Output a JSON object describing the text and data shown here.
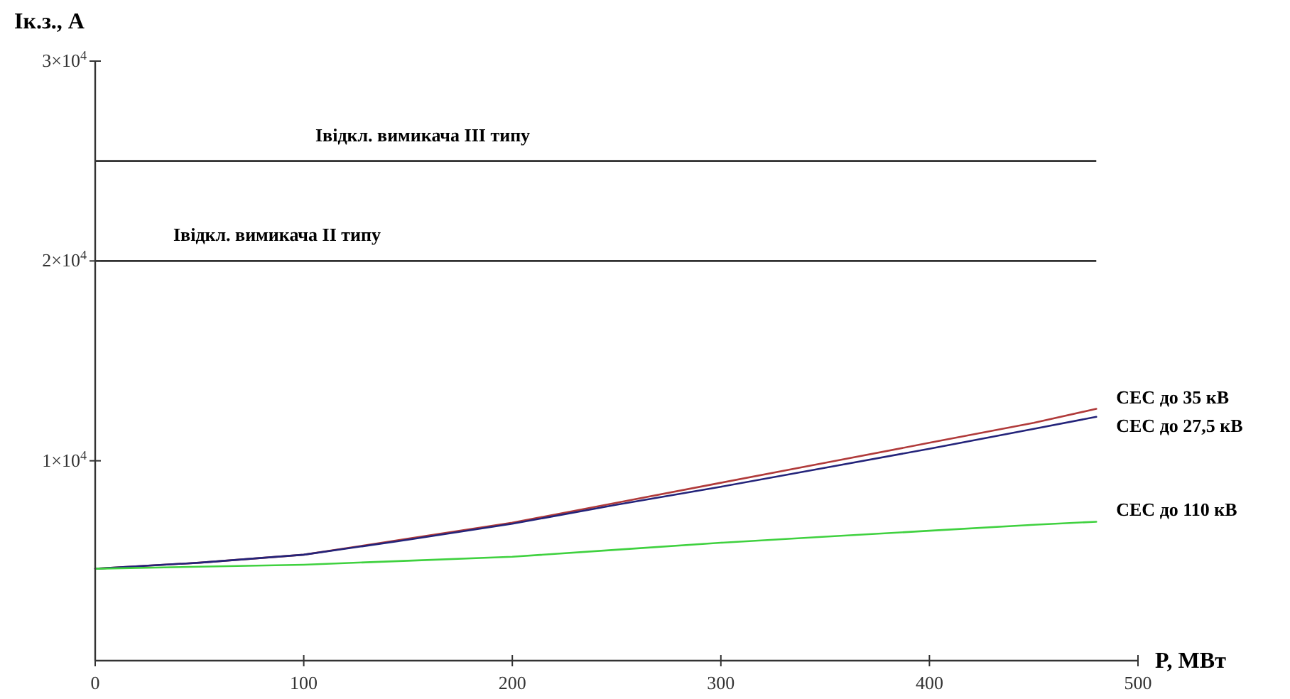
{
  "chart_data": {
    "type": "line",
    "xlabel": "P, МВт",
    "ylabel": "Iк.з., A",
    "xlim": [
      0,
      500
    ],
    "xticks": [
      0,
      100,
      200,
      300,
      400,
      500
    ],
    "ylim": [
      0,
      30000
    ],
    "yticks": [
      {
        "value": 10000,
        "label": "1×10$^{4}$"
      },
      {
        "value": 20000,
        "label": "2×10$^{4}$"
      },
      {
        "value": 30000,
        "label": "3×10$^{4}$"
      }
    ],
    "x": [
      0,
      50,
      100,
      150,
      200,
      250,
      300,
      350,
      400,
      450,
      480
    ],
    "series": [
      {
        "name": "СЕС до 35 кВ",
        "color": "#b03a3a",
        "values": [
          4600,
          4900,
          5300,
          6100,
          6900,
          7900,
          8900,
          9900,
          10900,
          11900,
          12600
        ]
      },
      {
        "name": "СЕС до 27,5 кВ",
        "color": "#23237a",
        "values": [
          4600,
          4900,
          5300,
          6050,
          6850,
          7800,
          8700,
          9650,
          10600,
          11600,
          12200
        ]
      },
      {
        "name": "СЕС до 110 кВ",
        "color": "#3fd13f",
        "values": [
          4600,
          4700,
          4800,
          5000,
          5200,
          5550,
          5900,
          6200,
          6500,
          6800,
          6950
        ]
      }
    ],
    "ref_lines": [
      {
        "axis": "y",
        "value": 25000,
        "label": "Iвідкл. вимикача III типу",
        "color": "#000000"
      },
      {
        "axis": "y",
        "value": 20000,
        "label": "Iвідкл. вимикача II типу",
        "color": "#000000"
      }
    ],
    "grid": false,
    "legend": false,
    "marker": "none",
    "line_style": "solid"
  }
}
